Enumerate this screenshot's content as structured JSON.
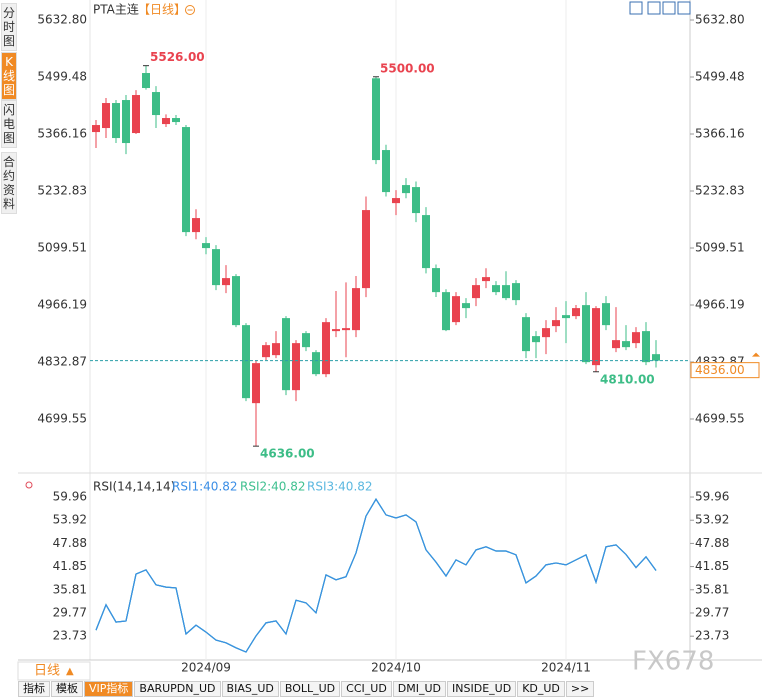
{
  "chart_data": [
    {
      "type": "candlestick",
      "title": "PTA主连",
      "subtitle": "【日线】",
      "categories": [
        null,
        null,
        null,
        null,
        null,
        null,
        null,
        null,
        null,
        null,
        null,
        "2024/09",
        null,
        null,
        null,
        null,
        null,
        null,
        null,
        null,
        null,
        null,
        null,
        null,
        null,
        null,
        null,
        null,
        null,
        null,
        "2024/10",
        null,
        null,
        null,
        null,
        null,
        null,
        null,
        null,
        null,
        null,
        null,
        null,
        null,
        null,
        null,
        null,
        "2024/11",
        null,
        null,
        null,
        null,
        null,
        null,
        null,
        null,
        null
      ],
      "open": [
        5370.7,
        5380.1,
        5438.6,
        5445.6,
        5368.4,
        5508.8,
        5464.3,
        5389.4,
        5403.5,
        5382.4,
        5136.7,
        5111.0,
        5096.9,
        5012.7,
        5033.8,
        4919.1,
        4736.6,
        4844.2,
        4848.9,
        4935.5,
        4767.0,
        4900.4,
        4855.9,
        4804.4,
        4905.1,
        4907.4,
        4907.4,
        5005.7,
        5496.5,
        5328.6,
        5204.5,
        5246.7,
        5242.0,
        5176.5,
        5052.5,
        4996.3,
        4926.1,
        4970.6,
        4982.3,
        5022.1,
        5012.7,
        5012.7,
        5017.4,
        4937.8,
        4893.4,
        4891.0,
        4916.8,
        4942.5,
        4940.2,
        4965.9,
        4825.5,
        4970.6,
        4865.3,
        4881.7,
        4877.0,
        4905.1,
        4851.2
      ],
      "high": [
        5398.8,
        5450.3,
        5445.6,
        5457.3,
        5468.9,
        5526,
        5478.0,
        5412.0,
        5410.5,
        5387.1,
        5190.0,
        5125.0,
        5106.3,
        5059.5,
        5038.5,
        4923.8,
        4837.2,
        4879.3,
        4905.0,
        4940.2,
        4884.0,
        4905.1,
        4860.6,
        4935.5,
        4999.0,
        5019.0,
        5034.0,
        5220.0,
        5500,
        5341.0,
        5235.0,
        5263.0,
        5255.0,
        5195.0,
        5061.0,
        5003.0,
        4996.3,
        4982.3,
        5029.0,
        5052.0,
        5022.1,
        5045.0,
        5024.4,
        4947.2,
        4905.1,
        4930.8,
        4961.2,
        4975.3,
        4966.2,
        4996.3,
        4963.6,
        4986.9,
        4961.2,
        4919.1,
        4914.4,
        4926.1,
        4884.0
      ],
      "low": [
        5333.3,
        5356.7,
        5345.0,
        5319.2,
        5366.1,
        5470.0,
        5380.1,
        5382.4,
        5387.1,
        5127.3,
        5120.0,
        5085.0,
        5001.0,
        4994.0,
        4914.4,
        4741.3,
        4636,
        4837.2,
        4841.9,
        4755.3,
        4741.3,
        4858.3,
        4799.7,
        4797.4,
        4891.0,
        4844.0,
        4891.0,
        4984.6,
        5295.8,
        5220.0,
        5176.5,
        5216.0,
        5160.0,
        5040.0,
        4985.0,
        4905.0,
        4919.1,
        4935.5,
        4963.6,
        5005.7,
        4989.3,
        4977.6,
        4965.9,
        4841.9,
        4841.9,
        4851.2,
        4902.7,
        4877.0,
        4933.1,
        4827.9,
        4810,
        4907.4,
        4855.9,
        4860.6,
        4865.3,
        4825.5,
        4820.0
      ],
      "close": [
        5387.1,
        5438.6,
        5356.7,
        5345.0,
        5457.3,
        5473.7,
        5410.5,
        5403.5,
        5394.1,
        5136.7,
        5169.5,
        5099.3,
        5012.7,
        5029.1,
        4919.1,
        4748.3,
        4830.2,
        4872.3,
        4877.0,
        4767.0,
        4877.0,
        4867.6,
        4804.4,
        4926.1,
        4909.8,
        4912.1,
        5005.7,
        5188.2,
        5305.2,
        5230.3,
        5216.3,
        5227.9,
        5181.2,
        5052.5,
        4996.3,
        4907.4,
        4986.9,
        4958.9,
        5012.7,
        5031.4,
        4996.3,
        4982.3,
        4977.6,
        4858.3,
        4879.3,
        4912.1,
        4930.8,
        4935.5,
        4958.9,
        4832.5,
        4958.9,
        4919.1,
        4884.0,
        4867.6,
        4902.7,
        4832.5,
        4836.0
      ],
      "up_color": "#e9434f",
      "down_color": "#3dbd87",
      "ylim": [
        4584.9,
        5667.9
      ],
      "yticks": [
        {
          "value": 5632.8,
          "label": "5632.80"
        },
        5499.48,
        5366.16,
        5232.83,
        5099.51,
        4966.19,
        4832.87,
        4699.55
      ],
      "annotations": [
        {
          "value": 5526,
          "label": "5526.00"
        },
        {
          "value": 5500,
          "label": "5500.00"
        },
        {
          "value": 4636,
          "label": "4636.00"
        },
        {
          "value": 4810,
          "label": "4810.00"
        }
      ],
      "last_price": {
        "value": 4836,
        "label": "4836.00"
      },
      "grid": true
    },
    {
      "type": "line",
      "title": "RSI(14,14,14)",
      "series": [
        {
          "name": "RSI1:40.82",
          "color": "#3a8ee6",
          "values": [
            25.3,
            31.9,
            27.4,
            27.7,
            39.9,
            41.0,
            37.1,
            36.5,
            36.3,
            24.3,
            26.6,
            24.8,
            22.7,
            22.0,
            20.7,
            19.6,
            23.8,
            27.2,
            27.7,
            24.3,
            33.1,
            32.4,
            29.8,
            39.7,
            38.4,
            39.2,
            45.4,
            55.0,
            59.4,
            55.3,
            54.5,
            55.3,
            53.5,
            46.2,
            43.0,
            39.4,
            43.6,
            42.3,
            46.2,
            47.0,
            45.9,
            45.9,
            44.9,
            37.6,
            39.4,
            42.3,
            42.8,
            42.3,
            43.6,
            44.9,
            37.8,
            47.0,
            47.5,
            45.0,
            41.6,
            44.4,
            40.82
          ]
        },
        {
          "name": "RSI2:40.82",
          "color": "#40c090",
          "values": [
            25.3,
            31.9,
            27.4,
            27.7,
            39.9,
            41.0,
            37.1,
            36.5,
            36.3,
            24.3,
            26.6,
            24.8,
            22.7,
            22.0,
            20.7,
            19.6,
            23.8,
            27.2,
            27.7,
            24.3,
            33.1,
            32.4,
            29.8,
            39.7,
            38.4,
            39.2,
            45.4,
            55.0,
            59.4,
            55.3,
            54.5,
            55.3,
            53.5,
            46.2,
            43.0,
            39.4,
            43.6,
            42.3,
            46.2,
            47.0,
            45.9,
            45.9,
            44.9,
            37.6,
            39.4,
            42.3,
            42.8,
            42.3,
            43.6,
            44.9,
            37.8,
            47.0,
            47.5,
            45.0,
            41.6,
            44.4,
            40.82
          ]
        },
        {
          "name": "RSI3:40.82",
          "color": "#5cb8e0",
          "values": [
            25.3,
            31.9,
            27.4,
            27.7,
            39.9,
            41.0,
            37.1,
            36.5,
            36.3,
            24.3,
            26.6,
            24.8,
            22.7,
            22.0,
            20.7,
            19.6,
            23.8,
            27.2,
            27.7,
            24.3,
            33.1,
            32.4,
            29.8,
            39.7,
            38.4,
            39.2,
            45.4,
            55.0,
            59.4,
            55.3,
            54.5,
            55.3,
            53.5,
            46.2,
            43.0,
            39.4,
            43.6,
            42.3,
            46.2,
            47.0,
            45.9,
            45.9,
            44.9,
            37.6,
            39.4,
            42.3,
            42.8,
            42.3,
            43.6,
            44.9,
            37.8,
            47.0,
            47.5,
            45.0,
            41.6,
            44.4,
            40.82
          ]
        }
      ],
      "ylim": [
        17.53,
        64.39
      ],
      "yticks": [
        59.96,
        53.92,
        47.88,
        41.85,
        35.81,
        29.77,
        23.73
      ]
    }
  ],
  "ui": {
    "side_tabs": [
      "分时图",
      "K线图",
      "闪电图",
      "合约资料"
    ],
    "period_button": "日线",
    "bottom_tabs": [
      "指标",
      "模板",
      "VIP指标",
      "BARUPDN_UD",
      "BIAS_UD",
      "BOLL_UD",
      "CCI_UD",
      "DMI_UD",
      "INSIDE_UD",
      "KD_UD",
      ">>"
    ],
    "watermark": "FX678"
  }
}
